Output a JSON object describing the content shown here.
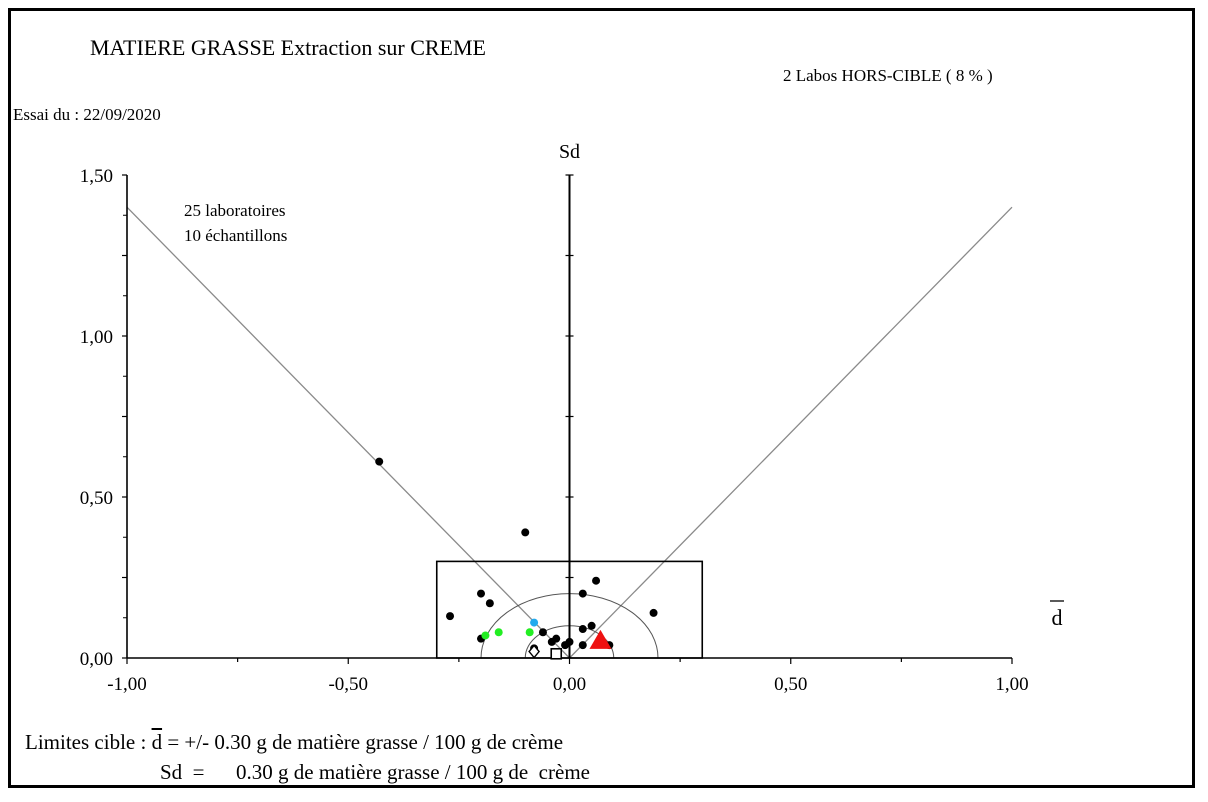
{
  "chart_data": {
    "type": "scatter",
    "title": "MATIERE  GRASSE Extraction sur CREME",
    "outliers_note": "2 Labos HORS-CIBLE  ( 8 % )",
    "date_label": "Essai du : 22/09/2020",
    "annotation_lines": [
      "25 laboratoires",
      "10 échantillons"
    ],
    "ylabel": "Sd",
    "xlabel": "d",
    "xlim": [
      -1.0,
      1.0
    ],
    "ylim": [
      0.0,
      1.5
    ],
    "x_tick_labels": [
      "-1,00",
      "-0,50",
      "0,00",
      "0,50",
      "1,00"
    ],
    "x_tick_values": [
      -1.0,
      -0.5,
      0.0,
      0.5,
      1.0
    ],
    "y_tick_labels": [
      "0,00",
      "0,50",
      "1,00",
      "1,50"
    ],
    "y_tick_values": [
      0.0,
      0.5,
      1.0,
      1.5
    ],
    "target_box": {
      "x_min": -0.3,
      "x_max": 0.3,
      "y_max": 0.3
    },
    "reference_lines": [
      {
        "x1": -1.0,
        "y1": 1.4,
        "x2": 0.0,
        "y2": 0.0
      },
      {
        "x1": 0.0,
        "y1": 0.0,
        "x2": 1.0,
        "y2": 1.4
      }
    ],
    "semicircles_radius": [
      0.1,
      0.2
    ],
    "series": [
      {
        "marker": "dot",
        "color": "#000000",
        "points": [
          [
            -0.43,
            0.61
          ],
          [
            -0.1,
            0.39
          ],
          [
            -0.27,
            0.13
          ],
          [
            -0.2,
            0.2
          ],
          [
            -0.18,
            0.17
          ],
          [
            -0.2,
            0.06
          ],
          [
            0.06,
            0.24
          ],
          [
            0.03,
            0.2
          ],
          [
            0.19,
            0.14
          ],
          [
            0.03,
            0.09
          ],
          [
            0.05,
            0.1
          ],
          [
            -0.06,
            0.08
          ],
          [
            -0.04,
            0.05
          ],
          [
            -0.03,
            0.06
          ],
          [
            -0.01,
            0.04
          ],
          [
            0.0,
            0.05
          ],
          [
            0.03,
            0.04
          ],
          [
            0.09,
            0.04
          ],
          [
            -0.08,
            0.03
          ]
        ]
      },
      {
        "marker": "dot",
        "color": "#22ee22",
        "points": [
          [
            -0.19,
            0.07
          ],
          [
            -0.16,
            0.08
          ],
          [
            -0.09,
            0.08
          ]
        ]
      },
      {
        "marker": "dot",
        "color": "#22aaee",
        "points": [
          [
            -0.08,
            0.11
          ]
        ]
      },
      {
        "marker": "triangle",
        "color": "#ee1111",
        "points": [
          [
            0.07,
            0.05
          ]
        ]
      },
      {
        "marker": "diamond",
        "color": "#000000",
        "points": [
          [
            -0.08,
            0.02
          ]
        ]
      },
      {
        "marker": "square",
        "color": "#000000",
        "points": [
          [
            -0.03,
            0.01
          ]
        ]
      }
    ]
  },
  "footer": {
    "line1_prefix": "Limites cible : ",
    "line1_symbol": "d",
    "line1_text": " = +/- 0.30 g de matière grasse / 100 g de crème",
    "line2_text": "Sd  =      0.30 g de matière grasse / 100 g de  crème"
  }
}
